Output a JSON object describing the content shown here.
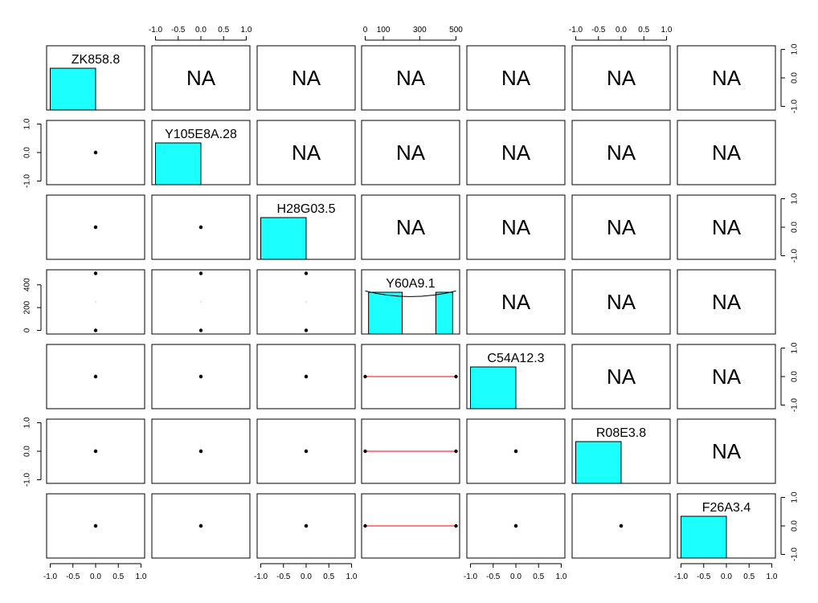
{
  "chart_data": {
    "type": "pairs",
    "variables": [
      "ZK858.8",
      "Y105E8A.28",
      "H28G03.5",
      "Y60A9.1",
      "C54A12.3",
      "R08E3.8",
      "F26A3.4"
    ],
    "upper_label": "NA",
    "hist_color": "#1CFFFF",
    "reg_line_color": "#FF0000",
    "point_color": "#000000",
    "axis_ticks": {
      "standard": {
        "range": [
          -1.0,
          1.0
        ],
        "ticks": [
          -1.0,
          -0.5,
          0.0,
          0.5,
          1.0
        ],
        "labels": [
          "-1.0",
          "-0.5",
          "0.0",
          "0.5",
          "1.0"
        ]
      },
      "vertical": {
        "range": [
          -1.0,
          1.0
        ],
        "ticks": [
          -1.0,
          0.0,
          1.0
        ],
        "labels": [
          "-1.0",
          "0.0",
          "1.0"
        ]
      },
      "y60a9": {
        "range": [
          0,
          500
        ],
        "ticks": [
          0,
          100,
          300,
          500
        ],
        "labels": [
          "0",
          "100",
          "300",
          "500"
        ]
      },
      "y60a9_vertical": {
        "range": [
          0,
          500
        ],
        "ticks": [
          0,
          200,
          400
        ],
        "labels": [
          "0",
          "200",
          "400"
        ]
      }
    },
    "axes": {
      "top": [
        {
          "col": 1,
          "scale": "standard"
        },
        {
          "col": 3,
          "scale": "y60a9"
        },
        {
          "col": 5,
          "scale": "standard"
        }
      ],
      "bottom": [
        {
          "col": 0,
          "scale": "standard"
        },
        {
          "col": 2,
          "scale": "standard"
        },
        {
          "col": 4,
          "scale": "standard"
        },
        {
          "col": 6,
          "scale": "standard"
        }
      ],
      "left": [
        {
          "row": 1,
          "scale": "vertical"
        },
        {
          "row": 3,
          "scale": "y60a9_vertical"
        },
        {
          "row": 5,
          "scale": "vertical"
        }
      ],
      "right": [
        {
          "row": 0,
          "scale": "vertical"
        },
        {
          "row": 2,
          "scale": "vertical"
        },
        {
          "row": 4,
          "scale": "vertical"
        },
        {
          "row": 6,
          "scale": "vertical"
        }
      ]
    },
    "values": {
      "ZK858.8": [
        0,
        0
      ],
      "Y105E8A.28": [
        0,
        0
      ],
      "H28G03.5": [
        0,
        0
      ],
      "Y60A9.1": [
        0,
        500
      ],
      "C54A12.3": [
        0,
        0
      ],
      "R08E3.8": [
        0,
        0
      ],
      "F26A3.4": [
        0,
        0
      ]
    },
    "histograms": {
      "standard": {
        "range": [
          -1.0,
          1.0
        ],
        "bars": [
          {
            "from": -1.0,
            "to": 0.0,
            "height": 1.0
          }
        ]
      },
      "Y60A9.1": {
        "range": [
          -20,
          520
        ],
        "bars": [
          {
            "from": 0,
            "to": 200,
            "height": 1.0
          },
          {
            "from": 400,
            "to": 500,
            "height": 1.0
          }
        ]
      }
    }
  }
}
